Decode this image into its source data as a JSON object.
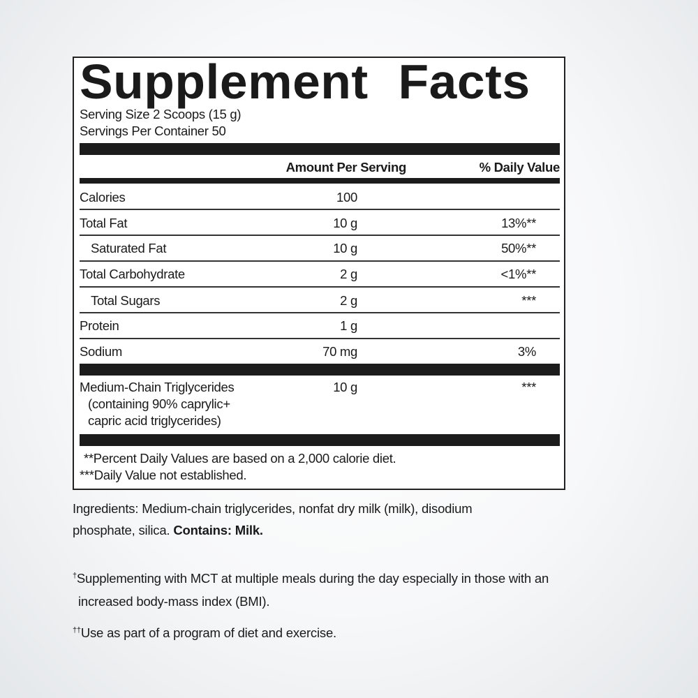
{
  "label": {
    "title": "Supplement Facts",
    "serving_size": "Serving Size 2 Scoops (15 g)",
    "servings_per_container": "Servings Per Container 50",
    "header_amount": "Amount Per Serving",
    "header_dv": "% Daily Value",
    "rows": [
      {
        "name": "Calories",
        "amount": "100",
        "dv": ""
      },
      {
        "name": "Total Fat",
        "amount": "10 g",
        "dv": "13%**"
      },
      {
        "name": "Saturated Fat",
        "amount": "10 g",
        "dv": "50%**"
      },
      {
        "name": "Total Carbohydrate",
        "amount": "2 g",
        "dv": "<1%**"
      },
      {
        "name": "Total Sugars",
        "amount": "2 g",
        "dv": "***"
      },
      {
        "name": "Protein",
        "amount": "1 g",
        "dv": ""
      },
      {
        "name": "Sodium",
        "amount": "70 mg",
        "dv": "3%"
      }
    ],
    "mct": {
      "name": "Medium-Chain Triglycerides",
      "line2": "(containing 90% caprylic+",
      "line3": "capric acid triglycerides)",
      "amount": "10 g",
      "dv": "***"
    },
    "footnote1": "**Percent Daily Values are based on a 2,000 calorie diet.",
    "footnote2": "***Daily Value not established."
  },
  "ingredients": {
    "line1": "Ingredients: Medium-chain triglycerides, nonfat dry milk (milk), disodium",
    "line2": "phosphate, silica.",
    "contains": "Contains: Milk."
  },
  "notes": {
    "dagger1": "†",
    "note1_line1": "Supplementing with MCT at multiple meals during the day especially in those with an",
    "note1_line2": "increased body-mass index (BMI).",
    "dagger2": "††",
    "note2": "Use as part of a program of diet and exercise."
  }
}
